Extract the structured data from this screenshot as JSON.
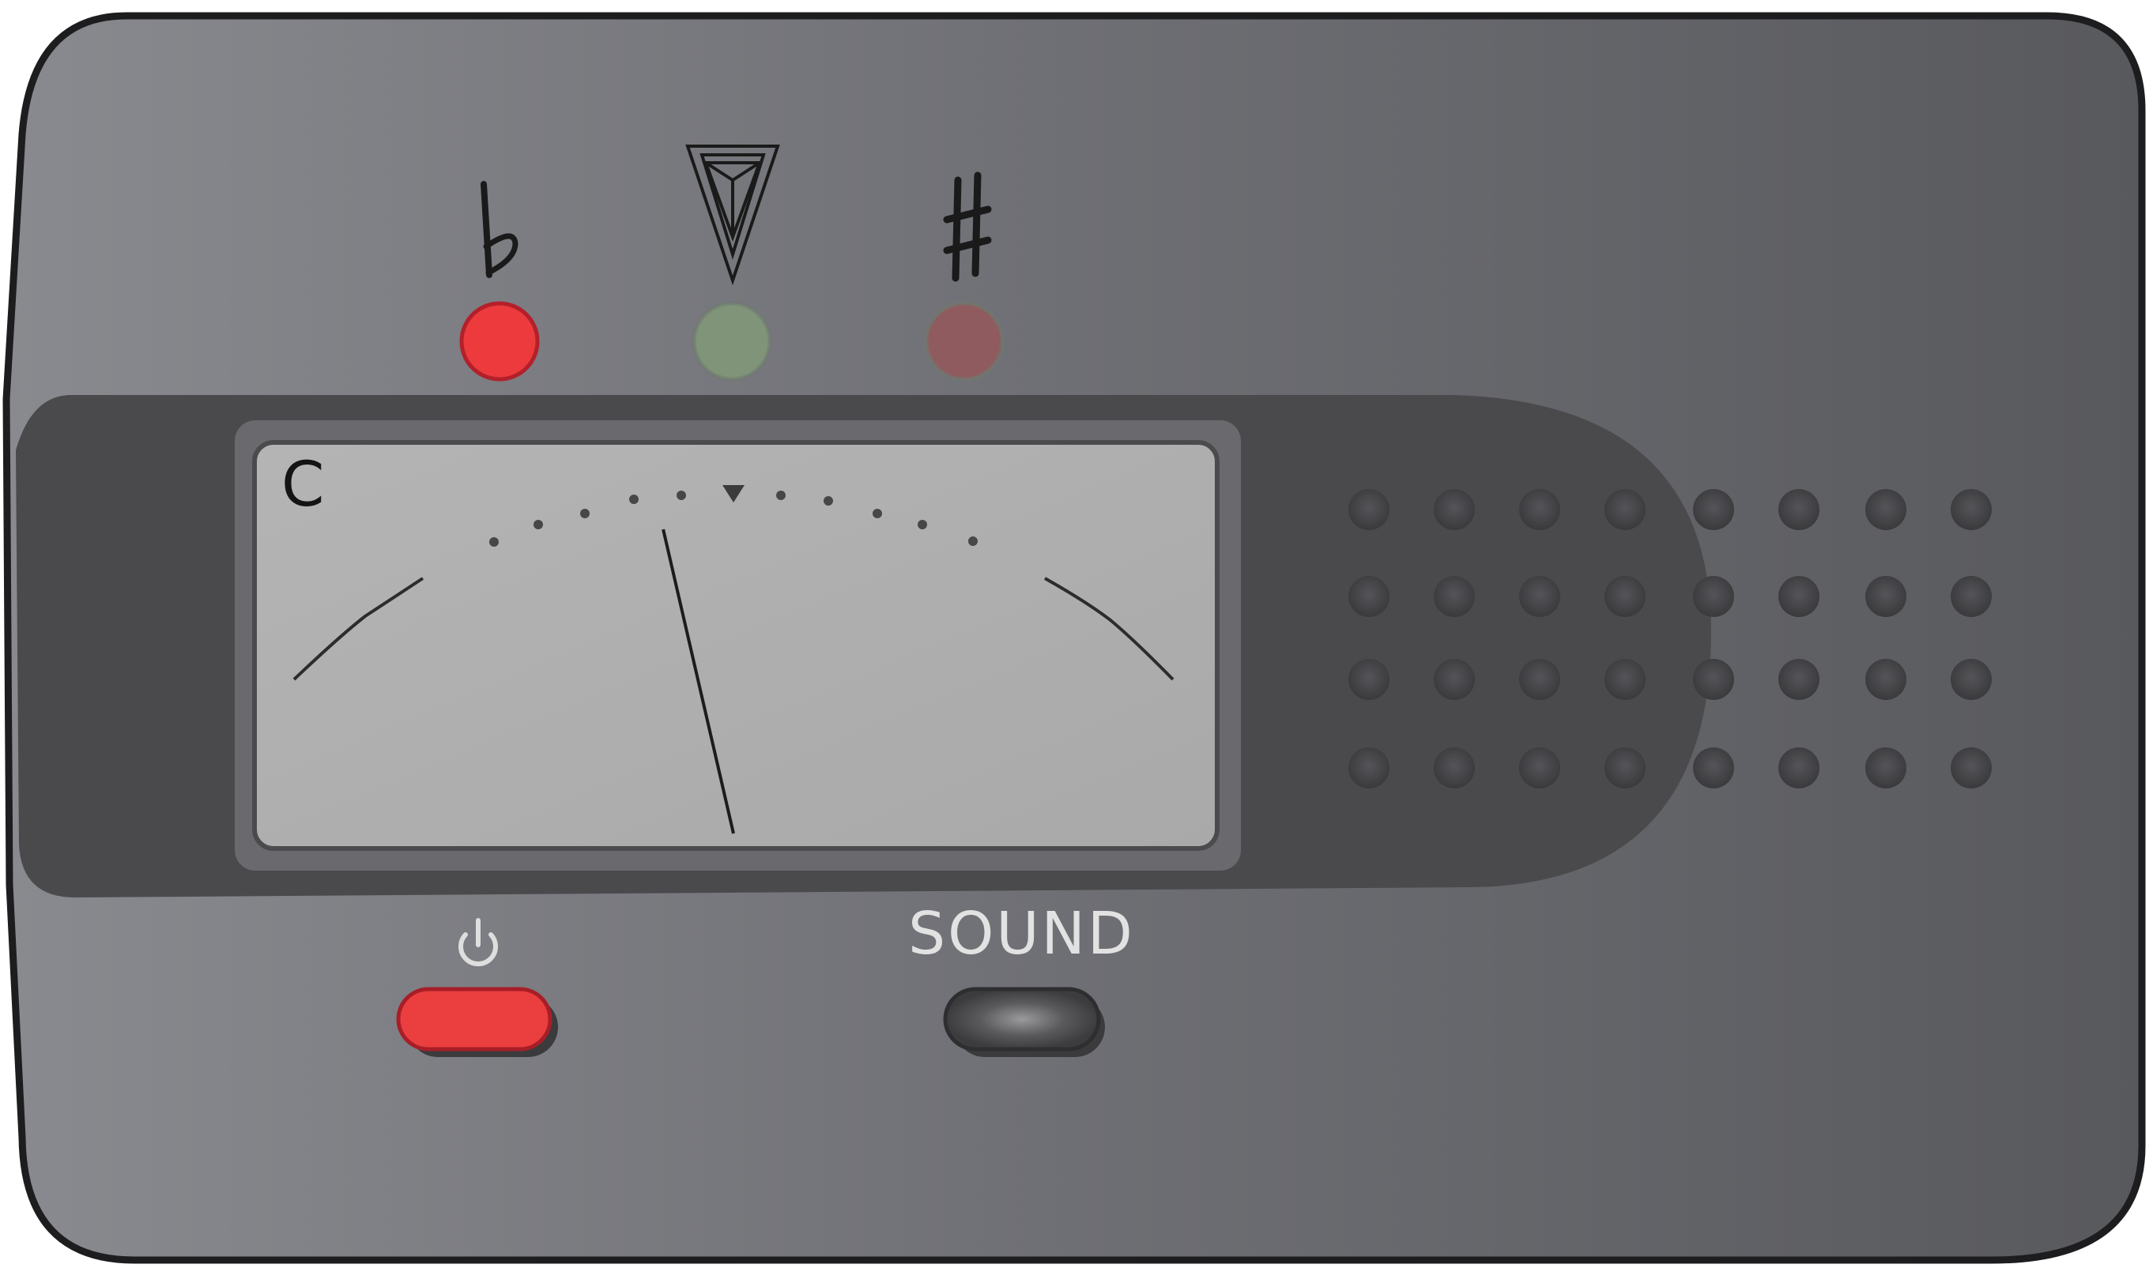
{
  "device": {
    "lights": [
      {
        "symbol": "flat-icon",
        "name": "flat-light",
        "color": "#ec3a3d",
        "state": "on"
      },
      {
        "symbol": "in-tune-triangle-icon",
        "name": "in-tune-light",
        "color": "#7f9478",
        "state": "off"
      },
      {
        "symbol": "sharp-icon",
        "name": "sharp-light",
        "color": "#8f5b5e",
        "state": "off"
      }
    ],
    "display": {
      "note": "C",
      "needle_position": -0.26
    },
    "buttons": {
      "power_icon": "power-icon",
      "power_color": "#ea3e3f",
      "sound_label": "SOUND"
    },
    "speaker": {
      "rows": 4,
      "cols": 8
    }
  }
}
